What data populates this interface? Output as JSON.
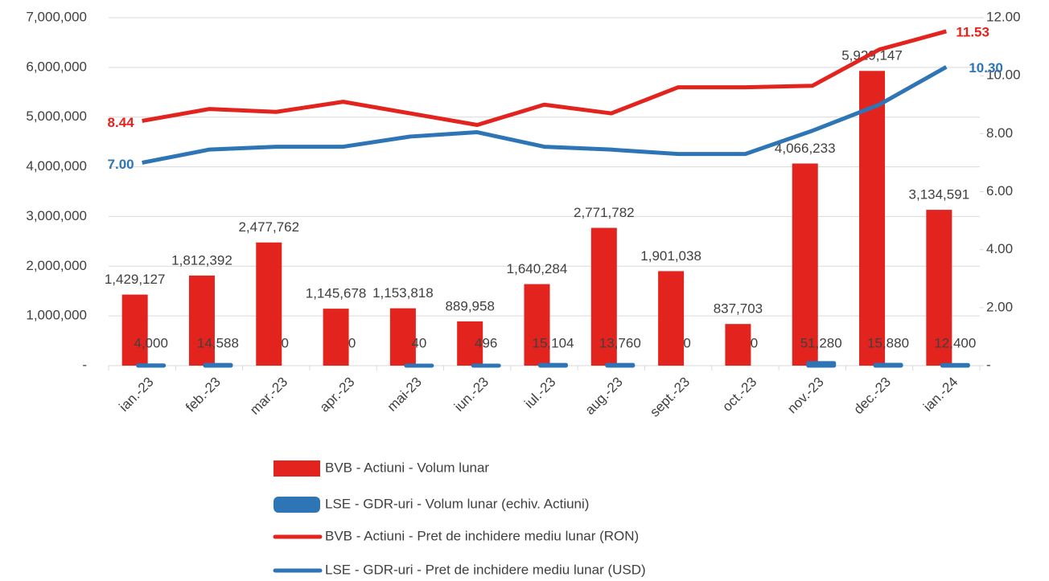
{
  "chart_data": {
    "type": "bar_line",
    "categories": [
      "ian.-23",
      "feb.-23",
      "mar.-23",
      "apr.-23",
      "mai-23",
      "iun.-23",
      "iul.-23",
      "aug.-23",
      "sept.-23",
      "oct.-23",
      "nov.-23",
      "dec.-23",
      "ian.-24"
    ],
    "series": [
      {
        "name": "BVB - Actiuni - Volum lunar",
        "color": "#e3231e",
        "kind": "bar",
        "values": [
          1429127,
          1812392,
          2477762,
          1145678,
          1153818,
          889958,
          1640284,
          2771782,
          1901038,
          837703,
          4066233,
          5929147,
          3134591
        ],
        "value_labels": [
          "1,429,127",
          "1,812,392",
          "2,477,762",
          "1,145,678",
          "1,153,818",
          "889,958",
          "1,640,284",
          "2,771,782",
          "1,901,038",
          "837,703",
          "4,066,233",
          "5,929,147",
          "3,134,591"
        ]
      },
      {
        "name": "LSE - GDR-uri - Volum lunar (echiv. Actiuni)",
        "color": "#2e75b6",
        "kind": "bar",
        "values": [
          4000,
          14588,
          0,
          0,
          40,
          496,
          15104,
          13760,
          0,
          0,
          51280,
          15880,
          12400
        ],
        "value_labels": [
          "4,000",
          "14,588",
          "0",
          "0",
          "40",
          "496",
          "15,104",
          "13,760",
          "0",
          "0",
          "51,280",
          "15,880",
          "12,400"
        ]
      },
      {
        "name": "BVB - Actiuni - Pret de inchidere mediu lunar (RON)",
        "color": "#e3231e",
        "kind": "line",
        "axis": "y2",
        "values": [
          8.44,
          8.85,
          8.75,
          9.1,
          8.7,
          8.3,
          9.0,
          8.7,
          9.6,
          9.6,
          9.65,
          10.9,
          11.53
        ],
        "value_labels": [
          "8.44",
          null,
          null,
          null,
          null,
          null,
          null,
          null,
          null,
          null,
          null,
          null,
          "11.53"
        ]
      },
      {
        "name": "LSE - GDR-uri - Pret de inchidere mediu lunar (USD)",
        "color": "#2e75b6",
        "kind": "line",
        "axis": "y2",
        "values": [
          7.0,
          7.45,
          7.55,
          7.55,
          7.9,
          8.05,
          7.55,
          7.45,
          7.3,
          7.3,
          8.1,
          9.0,
          10.3
        ],
        "value_labels": [
          "7.00",
          null,
          null,
          null,
          null,
          null,
          null,
          null,
          null,
          null,
          null,
          null,
          "10.30"
        ]
      }
    ],
    "ylim": [
      0,
      7000000
    ],
    "yticks": [
      {
        "value": 0,
        "label": "-"
      },
      {
        "value": 1000000,
        "label": "1,000,000"
      },
      {
        "value": 2000000,
        "label": "2,000,000"
      },
      {
        "value": 3000000,
        "label": "3,000,000"
      },
      {
        "value": 4000000,
        "label": "4,000,000"
      },
      {
        "value": 5000000,
        "label": "5,000,000"
      },
      {
        "value": 6000000,
        "label": "6,000,000"
      },
      {
        "value": 7000000,
        "label": "7,000,000"
      }
    ],
    "y2lim": [
      0,
      12
    ],
    "y2ticks": [
      {
        "value": 0,
        "label": "-"
      },
      {
        "value": 2,
        "label": "2.00"
      },
      {
        "value": 4,
        "label": "4.00"
      },
      {
        "value": 6,
        "label": "6.00"
      },
      {
        "value": 8,
        "label": "8.00"
      },
      {
        "value": 10,
        "label": "10.00"
      },
      {
        "value": 12,
        "label": "12.00"
      }
    ],
    "grid": true,
    "legend": "bottom"
  }
}
